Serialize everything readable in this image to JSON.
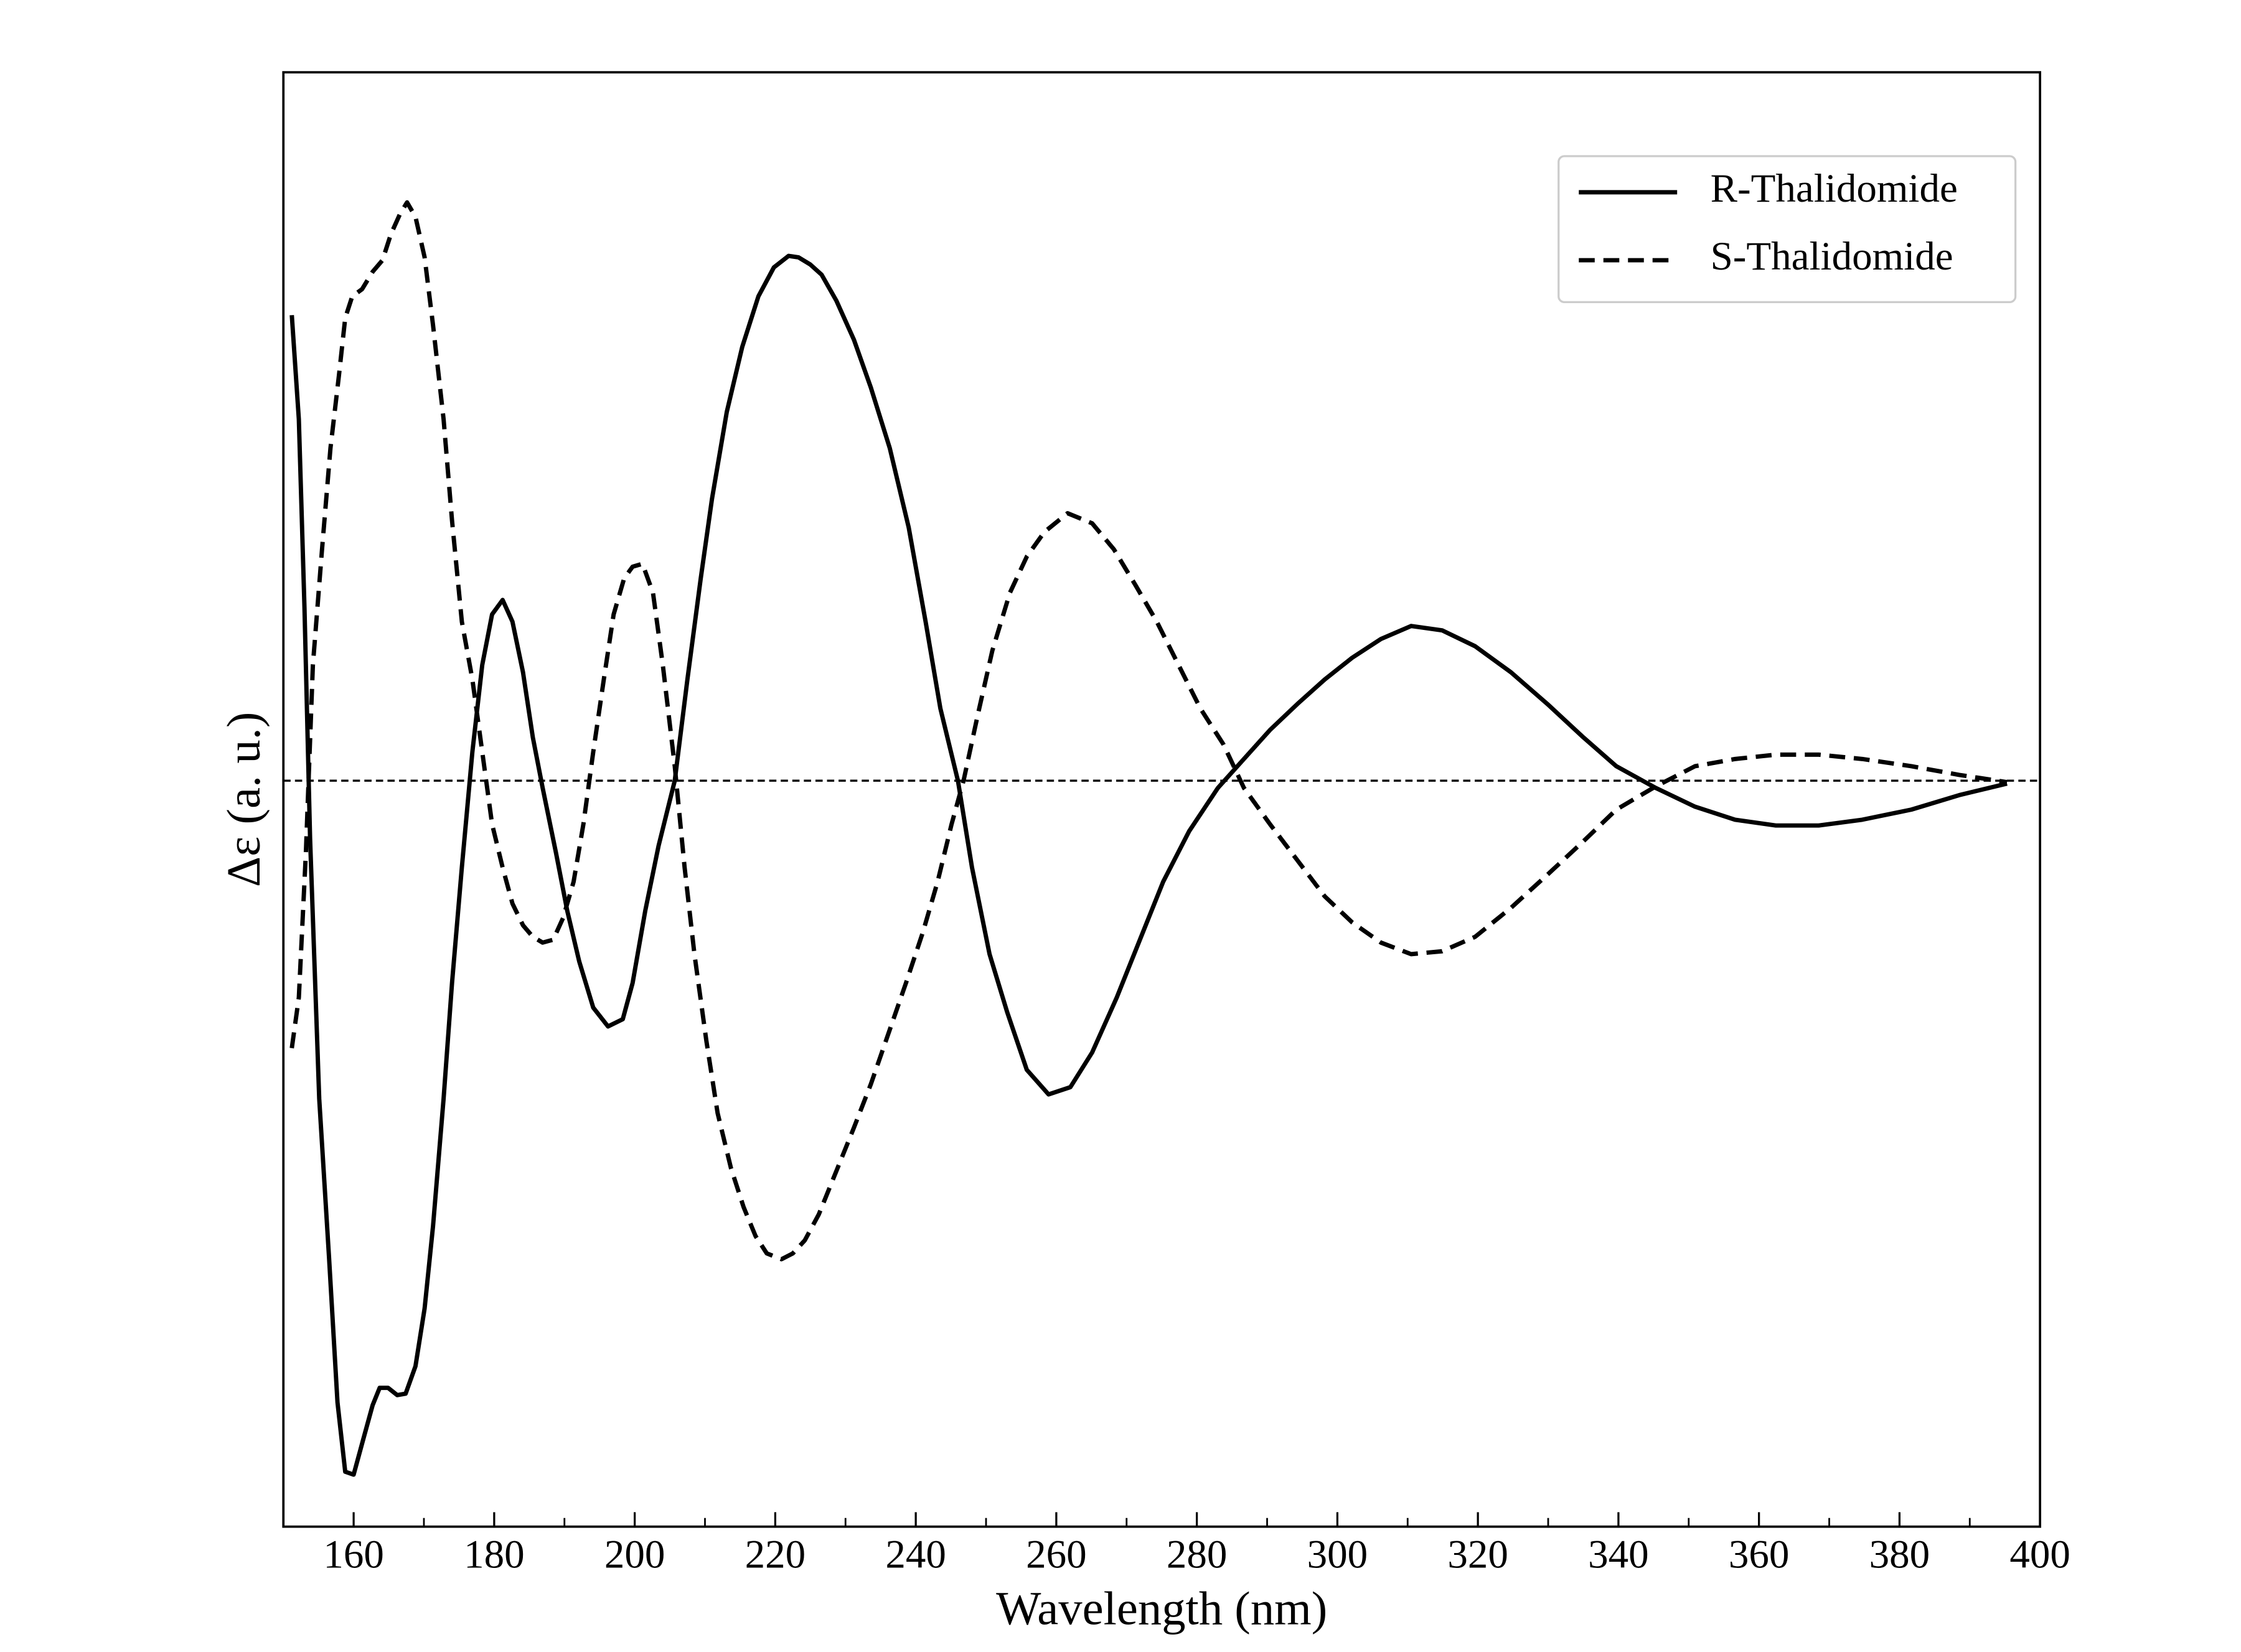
{
  "chart_data": {
    "type": "line",
    "xlabel": "Wavelength (nm)",
    "ylabel": "Δε (a. u.)",
    "xlim": [
      150,
      400
    ],
    "xticks": [
      160,
      180,
      200,
      220,
      240,
      260,
      280,
      300,
      320,
      340,
      360,
      380,
      400
    ],
    "xminorticks": [
      170,
      190,
      210,
      230,
      250,
      270,
      290,
      310,
      330,
      350,
      370,
      390
    ],
    "ylim": [
      -5.16,
      4.9
    ],
    "hline": 0,
    "legend": "upper right",
    "series": [
      {
        "name": "R-Thalidomide",
        "color": "#000000",
        "linestyle": "solid",
        "x": [
          151.2,
          152.2,
          153.0,
          153.8,
          155.1,
          156.5,
          157.7,
          158.8,
          160,
          161.4,
          162.7,
          163.7,
          164.9,
          166.2,
          167.4,
          168.8,
          170.1,
          171.3,
          172.8,
          174.0,
          175.4,
          176.9,
          178.3,
          179.7,
          181.2,
          182.6,
          184.1,
          185.5,
          186.9,
          188.8,
          190.4,
          192.1,
          194.1,
          196.2,
          198.3,
          199.7,
          201.5,
          203.4,
          205.7,
          207.5,
          209.4,
          211.0,
          213.1,
          215.3,
          217.6,
          219.8,
          221.9,
          223.3,
          225.0,
          226.6,
          228.7,
          231.2,
          233.6,
          236.3,
          239.0,
          241.4,
          243.5,
          246.0,
          248.0,
          250.5,
          253.0,
          255.8,
          258.9,
          262.0,
          265.1,
          268.6,
          271.9,
          275.2,
          278.9,
          283.0,
          286.7,
          290.4,
          294.3,
          298.2,
          302.1,
          306.2,
          310.5,
          314.9,
          319.6,
          324.7,
          329.9,
          335.0,
          339.7,
          345.3,
          350.9,
          356.6,
          362.4,
          368.5,
          374.7,
          381.7,
          388.5,
          395.3
        ],
        "values": [
          3.22,
          2.5,
          1.2,
          -0.4,
          -2.2,
          -3.3,
          -4.3,
          -4.78,
          -4.8,
          -4.55,
          -4.32,
          -4.2,
          -4.2,
          -4.25,
          -4.24,
          -4.05,
          -3.65,
          -3.08,
          -2.2,
          -1.4,
          -0.6,
          0.2,
          0.8,
          1.15,
          1.25,
          1.1,
          0.75,
          0.3,
          -0.05,
          -0.5,
          -0.9,
          -1.25,
          -1.57,
          -1.7,
          -1.65,
          -1.4,
          -0.9,
          -0.45,
          0,
          0.7,
          1.4,
          1.95,
          2.55,
          3.0,
          3.35,
          3.55,
          3.63,
          3.62,
          3.57,
          3.5,
          3.32,
          3.05,
          2.72,
          2.3,
          1.75,
          1.1,
          0.5,
          0,
          -0.6,
          -1.2,
          -1.6,
          -2.0,
          -2.17,
          -2.12,
          -1.88,
          -1.5,
          -1.1,
          -0.7,
          -0.35,
          -0.05,
          0.15,
          0.35,
          0.53,
          0.7,
          0.85,
          0.98,
          1.07,
          1.04,
          0.93,
          0.75,
          0.53,
          0.3,
          0.1,
          -0.05,
          -0.18,
          -0.27,
          -0.31,
          -0.31,
          -0.27,
          -0.2,
          -0.1,
          -0.02
        ]
      },
      {
        "name": "S-Thalidomide",
        "color": "#000000",
        "linestyle": "dashed",
        "x": [
          151.2,
          152.2,
          153.2,
          154.2,
          155.5,
          156.7,
          157.9,
          158.8,
          159.8,
          161.2,
          162.7,
          164.1,
          165.3,
          166.6,
          167.6,
          168.8,
          170.1,
          171.3,
          172.8,
          174.0,
          175.4,
          176.9,
          178.3,
          179.7,
          181.2,
          182.6,
          184.1,
          185.5,
          186.9,
          188.4,
          189.8,
          191.3,
          192.7,
          194.1,
          195.6,
          197.0,
          198.5,
          199.7,
          201.1,
          202.6,
          204.0,
          205.7,
          207.1,
          208.5,
          210.2,
          211.8,
          213.7,
          215.5,
          217.2,
          218.8,
          220.9,
          222.5,
          224.2,
          226.2,
          228.7,
          231.2,
          233.6,
          236.1,
          238.6,
          241.0,
          243.1,
          245.1,
          246.8,
          248.8,
          250.9,
          253.4,
          255.8,
          258.3,
          261.6,
          265.1,
          268.2,
          271.3,
          274.3,
          277.4,
          280.5,
          283.8,
          286.7,
          290.4,
          294.3,
          298.2,
          302.1,
          306.2,
          310.5,
          314.9,
          319.6,
          324.7,
          329.9,
          335.0,
          339.7,
          345.3,
          350.9,
          356.6,
          362.4,
          368.5,
          374.7,
          381.7,
          388.5,
          395.3
        ],
        "values": [
          -1.85,
          -1.5,
          -0.5,
          0.8,
          1.6,
          2.3,
          2.8,
          3.2,
          3.35,
          3.4,
          3.52,
          3.6,
          3.78,
          3.92,
          4.0,
          3.9,
          3.62,
          3.15,
          2.5,
          1.8,
          1.1,
          0.7,
          0.2,
          -0.3,
          -0.6,
          -0.85,
          -1.0,
          -1.08,
          -1.12,
          -1.1,
          -0.95,
          -0.7,
          -0.3,
          0.2,
          0.7,
          1.15,
          1.4,
          1.48,
          1.5,
          1.3,
          0.8,
          0.1,
          -0.6,
          -1.2,
          -1.8,
          -2.3,
          -2.68,
          -2.95,
          -3.15,
          -3.27,
          -3.31,
          -3.27,
          -3.18,
          -3.0,
          -2.7,
          -2.4,
          -2.1,
          -1.75,
          -1.4,
          -1.05,
          -0.7,
          -0.3,
          0,
          0.45,
          0.9,
          1.3,
          1.55,
          1.72,
          1.85,
          1.78,
          1.6,
          1.35,
          1.1,
          0.8,
          0.5,
          0.25,
          -0.05,
          -0.3,
          -0.55,
          -0.8,
          -0.98,
          -1.12,
          -1.2,
          -1.18,
          -1.08,
          -0.88,
          -0.65,
          -0.42,
          -0.2,
          -0.04,
          0.1,
          0.15,
          0.18,
          0.18,
          0.15,
          0.1,
          0.04,
          -0.01
        ]
      }
    ]
  }
}
